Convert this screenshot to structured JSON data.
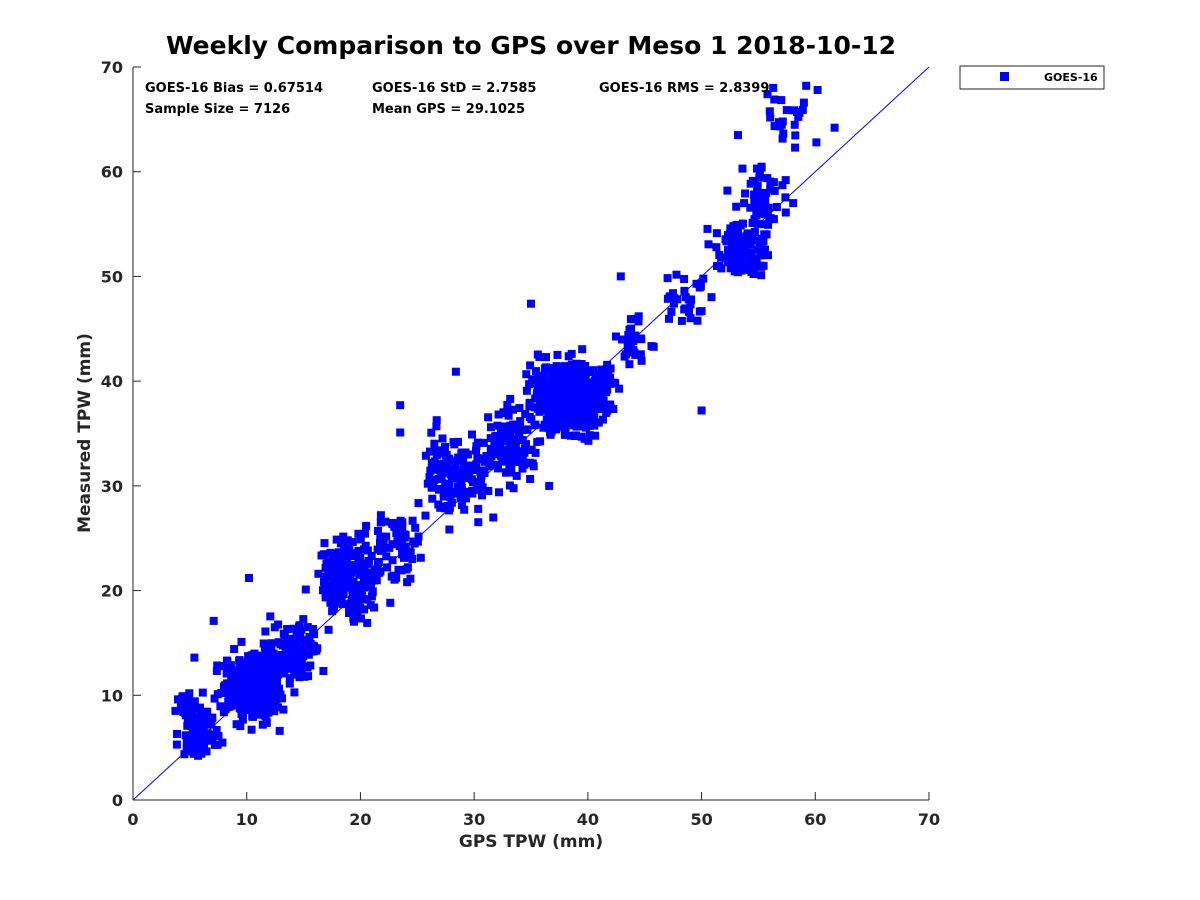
{
  "chart_data": {
    "type": "scatter",
    "title": "Weekly Comparison to GPS over Meso 1 2018-10-12",
    "xlabel": "GPS TPW (mm)",
    "ylabel": "Measured TPW (mm)",
    "xlim": [
      0,
      70
    ],
    "ylim": [
      0,
      70
    ],
    "xticks": [
      "0",
      "10",
      "20",
      "30",
      "40",
      "50",
      "60",
      "70"
    ],
    "yticks": [
      "0",
      "10",
      "20",
      "30",
      "40",
      "50",
      "60",
      "70"
    ],
    "grid": false,
    "legend_position": "outside-top-right",
    "marker_color": "#0000ff",
    "reference_line": {
      "from": [
        0,
        0
      ],
      "to": [
        70,
        70
      ],
      "color": "#0000ff"
    },
    "stats": {
      "bias": "GOES-16 Bias = 0.67514",
      "std": "GOES-16 StD = 2.7585",
      "rms": "GOES-16 RMS = 2.8399",
      "sample_size": "Sample Size = 7126",
      "mean_gps": "Mean GPS = 29.1025"
    },
    "series": [
      {
        "name": "GOES-16",
        "color": "#0000ff",
        "marker": "square",
        "clusters": [
          {
            "x_center": 10.5,
            "y_center": 11.0,
            "x_spread": 2.0,
            "y_spread": 2.5,
            "count": 380
          },
          {
            "x_center": 6.0,
            "y_center": 6.5,
            "x_spread": 1.5,
            "y_spread": 1.6,
            "count": 90
          },
          {
            "x_center": 4.5,
            "y_center": 9.0,
            "x_spread": 1.0,
            "y_spread": 1.5,
            "count": 25
          },
          {
            "x_center": 14.0,
            "y_center": 14.0,
            "x_spread": 1.8,
            "y_spread": 2.5,
            "count": 110
          },
          {
            "x_center": 19.0,
            "y_center": 21.0,
            "x_spread": 2.0,
            "y_spread": 3.0,
            "count": 170
          },
          {
            "x_center": 23.0,
            "y_center": 24.0,
            "x_spread": 2.2,
            "y_spread": 3.2,
            "count": 75
          },
          {
            "x_center": 28.5,
            "y_center": 31.0,
            "x_spread": 2.5,
            "y_spread": 3.2,
            "count": 140
          },
          {
            "x_center": 33.0,
            "y_center": 34.0,
            "x_spread": 1.8,
            "y_spread": 3.0,
            "count": 130
          },
          {
            "x_center": 38.5,
            "y_center": 38.5,
            "x_spread": 2.8,
            "y_spread": 2.8,
            "count": 520
          },
          {
            "x_center": 44.0,
            "y_center": 43.5,
            "x_spread": 1.5,
            "y_spread": 2.5,
            "count": 35
          },
          {
            "x_center": 49.0,
            "y_center": 48.0,
            "x_spread": 1.5,
            "y_spread": 1.8,
            "count": 30
          },
          {
            "x_center": 53.5,
            "y_center": 52.5,
            "x_spread": 2.0,
            "y_spread": 2.0,
            "count": 120
          },
          {
            "x_center": 55.0,
            "y_center": 57.5,
            "x_spread": 1.8,
            "y_spread": 2.5,
            "count": 55
          },
          {
            "x_center": 57.5,
            "y_center": 64.5,
            "x_spread": 2.0,
            "y_spread": 2.5,
            "count": 18
          }
        ],
        "points": [
          [
            59.2,
            68.2
          ],
          [
            60.2,
            67.8
          ],
          [
            61.7,
            64.2
          ],
          [
            60.1,
            62.8
          ],
          [
            56.3,
            68.0
          ],
          [
            56.4,
            66.9
          ],
          [
            55.8,
            67.4
          ],
          [
            59.0,
            66.6
          ],
          [
            58.9,
            65.9
          ],
          [
            57.4,
            59.2
          ],
          [
            50.0,
            37.2
          ],
          [
            23.5,
            37.7
          ],
          [
            23.5,
            35.1
          ],
          [
            24.1,
            20.8
          ],
          [
            36.6,
            30.0
          ],
          [
            35.0,
            47.4
          ],
          [
            42.9,
            50.0
          ],
          [
            53.2,
            63.5
          ],
          [
            53.6,
            60.3
          ],
          [
            28.4,
            40.9
          ],
          [
            12.9,
            6.6
          ],
          [
            7.1,
            17.1
          ],
          [
            10.2,
            21.2
          ],
          [
            5.4,
            13.6
          ],
          [
            15.2,
            20.1
          ]
        ]
      }
    ]
  }
}
